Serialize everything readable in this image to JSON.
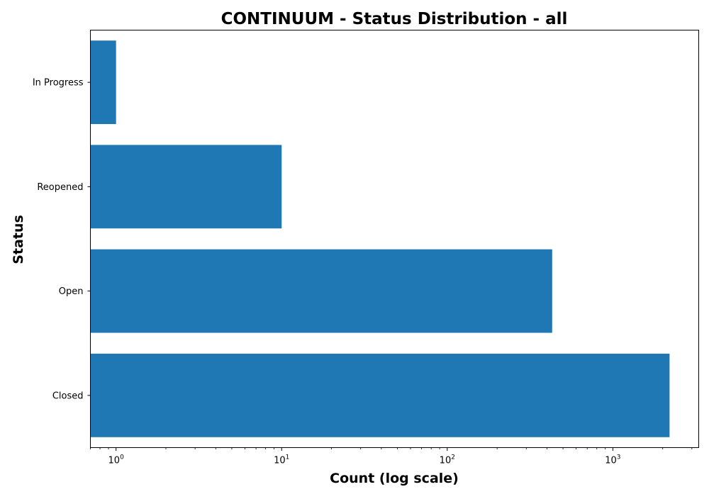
{
  "chart_data": {
    "type": "bar",
    "orientation": "horizontal",
    "title": "CONTINUUM - Status Distribution - all",
    "xlabel": "Count (log scale)",
    "ylabel": "Status",
    "x_scale": "log",
    "xlim": [
      0.7,
      3300
    ],
    "categories": [
      "Closed",
      "Open",
      "Reopened",
      "In Progress"
    ],
    "values": [
      2200,
      430,
      10,
      1
    ],
    "x_ticks": [
      {
        "value": 1,
        "base": "10",
        "exp": "0"
      },
      {
        "value": 10,
        "base": "10",
        "exp": "1"
      },
      {
        "value": 100,
        "base": "10",
        "exp": "2"
      },
      {
        "value": 1000,
        "base": "10",
        "exp": "3"
      }
    ],
    "bar_color": "#1f77b4",
    "grid": false,
    "legend": "none"
  }
}
